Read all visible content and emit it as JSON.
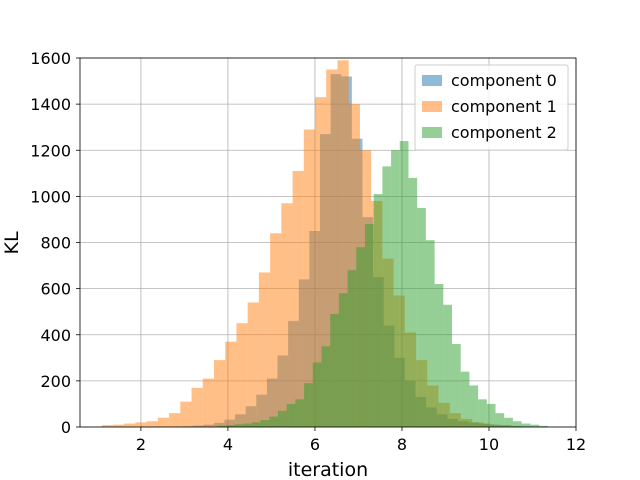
{
  "chart_data": {
    "type": "histogram",
    "xlabel": "iteration",
    "ylabel": "KL",
    "xlim": [
      0.6,
      12.0
    ],
    "ylim": [
      0,
      1600
    ],
    "xticks": [
      2,
      4,
      6,
      8,
      10,
      12
    ],
    "yticks": [
      0,
      200,
      400,
      600,
      800,
      1000,
      1200,
      1400,
      1600
    ],
    "grid": true,
    "legend_position": "top-right",
    "alpha": 0.5,
    "series": [
      {
        "name": "component 0",
        "color": "#1f77b4",
        "bin_start": 2.7,
        "bin_width": 0.244,
        "counts": [
          2,
          3,
          6,
          10,
          18,
          32,
          55,
          90,
          140,
          210,
          310,
          460,
          640,
          850,
          1270,
          1530,
          1520,
          1250,
          910,
          650,
          440,
          300,
          200,
          130,
          85,
          55,
          35,
          25,
          20,
          15,
          10,
          8,
          5,
          3,
          2
        ]
      },
      {
        "name": "component 1",
        "color": "#ff7f0e",
        "bin_start": 1.1,
        "bin_width": 0.258,
        "counts": [
          8,
          10,
          15,
          20,
          25,
          40,
          60,
          110,
          170,
          210,
          290,
          370,
          450,
          540,
          670,
          840,
          970,
          1110,
          1290,
          1430,
          1550,
          1590,
          1400,
          1200,
          980,
          730,
          570,
          410,
          290,
          180,
          105,
          60,
          35,
          20,
          12,
          6,
          3
        ]
      },
      {
        "name": "component 2",
        "color": "#2ca02c",
        "bin_start": 3.75,
        "bin_width": 0.2,
        "counts": [
          5,
          8,
          12,
          15,
          20,
          30,
          45,
          70,
          100,
          120,
          190,
          280,
          350,
          490,
          580,
          680,
          780,
          880,
          1010,
          1130,
          1200,
          1240,
          1080,
          950,
          810,
          620,
          530,
          360,
          240,
          180,
          120,
          100,
          60,
          40,
          25,
          15,
          10,
          5
        ]
      }
    ]
  }
}
